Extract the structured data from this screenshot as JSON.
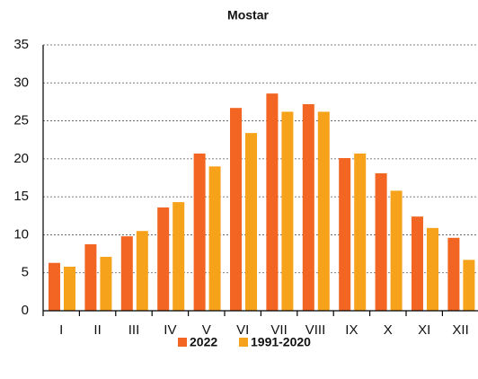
{
  "chart_data": {
    "type": "bar",
    "title": "Mostar",
    "categories": [
      "I",
      "II",
      "III",
      "IV",
      "V",
      "VI",
      "VII",
      "VIII",
      "IX",
      "X",
      "XI",
      "XII"
    ],
    "series": [
      {
        "name": "2022",
        "color": "#f26522",
        "values": [
          6.3,
          8.75,
          9.8,
          13.6,
          20.7,
          26.7,
          28.6,
          27.2,
          20.1,
          18.1,
          12.4,
          9.6
        ]
      },
      {
        "name": "1991-2020",
        "color": "#f7a21b",
        "values": [
          5.8,
          7.1,
          10.5,
          14.3,
          19.0,
          23.4,
          26.2,
          26.2,
          20.7,
          15.8,
          10.9,
          6.7
        ]
      }
    ],
    "ylim": [
      0,
      35
    ],
    "yticks": [
      0,
      5,
      10,
      15,
      20,
      25,
      30,
      35
    ],
    "grid": true
  }
}
